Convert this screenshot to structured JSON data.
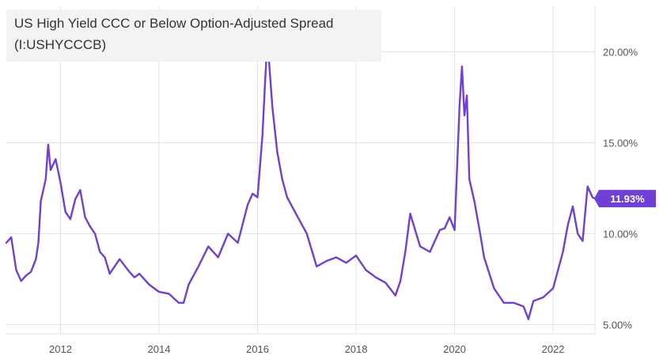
{
  "colors": {
    "series": "#6f3fd6",
    "grid": "#e3e3e3",
    "axis_text": "#555555",
    "badge_bg": "#6f3fd6",
    "badge_text": "#ffffff",
    "title_bg": "#f3f3f3"
  },
  "chart_data": {
    "type": "line",
    "title": "US High Yield CCC or Below Option-Adjusted Spread",
    "subtitle": "(I:USHYCCCB)",
    "xlabel": "",
    "ylabel": "",
    "xlim": [
      2010.9,
      2022.85
    ],
    "ylim": [
      4.5,
      22.5
    ],
    "y_ticks": [
      5,
      10,
      15,
      20
    ],
    "y_tick_labels": [
      "5.00%",
      "10.00%",
      "15.00%",
      "20.00%"
    ],
    "x_ticks": [
      2012,
      2014,
      2016,
      2018,
      2020,
      2022
    ],
    "x_tick_labels": [
      "2012",
      "2014",
      "2016",
      "2018",
      "2020",
      "2022"
    ],
    "grid": true,
    "y_axis_position": "right",
    "last_value_label": "11.93%",
    "series": [
      {
        "x": [
          2010.9,
          2011.0,
          2011.1,
          2011.2,
          2011.3,
          2011.4,
          2011.5,
          2011.55,
          2011.6,
          2011.7,
          2011.75,
          2011.8,
          2011.9,
          2012.0,
          2012.1,
          2012.2,
          2012.3,
          2012.4,
          2012.5,
          2012.6,
          2012.7,
          2012.8,
          2012.9,
          2013.0,
          2013.2,
          2013.4,
          2013.5,
          2013.6,
          2013.8,
          2014.0,
          2014.2,
          2014.4,
          2014.5,
          2014.6,
          2014.8,
          2015.0,
          2015.2,
          2015.4,
          2015.6,
          2015.8,
          2015.9,
          2016.0,
          2016.1,
          2016.15,
          2016.2,
          2016.3,
          2016.4,
          2016.5,
          2016.6,
          2016.8,
          2017.0,
          2017.2,
          2017.4,
          2017.6,
          2017.8,
          2018.0,
          2018.2,
          2018.4,
          2018.6,
          2018.8,
          2018.9,
          2019.0,
          2019.1,
          2019.3,
          2019.5,
          2019.7,
          2019.8,
          2019.9,
          2020.0,
          2020.1,
          2020.15,
          2020.2,
          2020.25,
          2020.3,
          2020.4,
          2020.5,
          2020.6,
          2020.8,
          2021.0,
          2021.2,
          2021.4,
          2021.5,
          2021.6,
          2021.8,
          2022.0,
          2022.2,
          2022.3,
          2022.4,
          2022.5,
          2022.6,
          2022.7,
          2022.8,
          2022.85
        ],
        "values": [
          9.5,
          9.8,
          8.0,
          7.4,
          7.7,
          7.9,
          8.6,
          9.5,
          11.8,
          13.0,
          14.9,
          13.5,
          14.1,
          12.8,
          11.2,
          10.8,
          11.9,
          12.4,
          10.9,
          10.4,
          10.0,
          9.0,
          8.7,
          7.8,
          8.6,
          7.9,
          7.6,
          7.8,
          7.2,
          6.8,
          6.7,
          6.2,
          6.2,
          7.2,
          8.2,
          9.3,
          8.7,
          10.0,
          9.5,
          11.6,
          12.2,
          12.0,
          15.4,
          18.2,
          20.7,
          17.0,
          14.5,
          13.0,
          12.0,
          11.0,
          10.0,
          8.2,
          8.5,
          8.7,
          8.4,
          8.8,
          8.0,
          7.6,
          7.3,
          6.6,
          7.4,
          9.0,
          11.1,
          9.3,
          9.0,
          10.2,
          10.3,
          10.9,
          10.2,
          17.0,
          19.2,
          16.5,
          17.6,
          13.0,
          11.8,
          10.3,
          8.7,
          7.0,
          6.2,
          6.2,
          6.0,
          5.3,
          6.3,
          6.5,
          7.0,
          9.0,
          10.5,
          11.5,
          10.0,
          9.6,
          12.6,
          12.0,
          11.93
        ]
      }
    ]
  }
}
